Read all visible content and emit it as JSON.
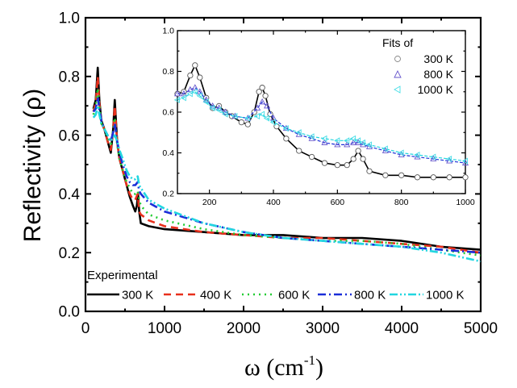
{
  "chart_data": [
    {
      "id": "main",
      "type": "line",
      "title": "",
      "xlabel": "ω (cm⁻¹)",
      "xlabel_base": "ω (cm",
      "xlabel_sup": "-1",
      "xlabel_close": ")",
      "ylabel": "Reflectivity (ρ)",
      "xlim": [
        0,
        5000
      ],
      "ylim": [
        0.0,
        1.0
      ],
      "xticks": [
        0,
        1000,
        2000,
        3000,
        4000,
        5000
      ],
      "xtick_labels": [
        "0",
        "1000",
        "2000",
        "3000",
        "4000",
        "5000"
      ],
      "yticks": [
        0.0,
        0.2,
        0.4,
        0.6,
        0.8,
        1.0
      ],
      "ytick_labels": [
        "0.0",
        "0.2",
        "0.4",
        "0.6",
        "0.8",
        "1.0"
      ],
      "grid": false,
      "legend_title": "Experimental",
      "legend_position": "bottom",
      "series": [
        {
          "name": "300 K",
          "color": "#000000",
          "style": "solid",
          "x": [
            100,
            130,
            155,
            175,
            200,
            240,
            280,
            320,
            350,
            370,
            400,
            430,
            470,
            520,
            560,
            600,
            630,
            650,
            665,
            680,
            700,
            800,
            1000,
            1500,
            2000,
            2500,
            3000,
            3500,
            4000,
            4500,
            5000
          ],
          "y": [
            0.69,
            0.72,
            0.83,
            0.72,
            0.65,
            0.62,
            0.58,
            0.54,
            0.62,
            0.72,
            0.58,
            0.52,
            0.48,
            0.43,
            0.39,
            0.36,
            0.34,
            0.36,
            0.4,
            0.34,
            0.3,
            0.29,
            0.28,
            0.27,
            0.26,
            0.26,
            0.25,
            0.25,
            0.24,
            0.22,
            0.21
          ]
        },
        {
          "name": "400 K",
          "color": "#e8301c",
          "style": "dash",
          "x": [
            100,
            130,
            155,
            175,
            200,
            240,
            280,
            320,
            350,
            370,
            400,
            430,
            470,
            520,
            560,
            600,
            630,
            660,
            680,
            700,
            800,
            1000,
            1500,
            2000,
            2500,
            3000,
            3500,
            4000,
            4500,
            5000
          ],
          "y": [
            0.68,
            0.71,
            0.8,
            0.71,
            0.64,
            0.62,
            0.58,
            0.55,
            0.62,
            0.7,
            0.58,
            0.52,
            0.48,
            0.43,
            0.4,
            0.38,
            0.38,
            0.4,
            0.34,
            0.33,
            0.31,
            0.29,
            0.27,
            0.26,
            0.25,
            0.25,
            0.24,
            0.23,
            0.22,
            0.2
          ]
        },
        {
          "name": "600 K",
          "color": "#22cc33",
          "style": "dot",
          "x": [
            100,
            130,
            155,
            175,
            200,
            240,
            280,
            320,
            350,
            370,
            400,
            430,
            470,
            520,
            560,
            600,
            630,
            660,
            680,
            700,
            800,
            1000,
            1500,
            2000,
            2500,
            3000,
            3500,
            4000,
            4500,
            5000
          ],
          "y": [
            0.67,
            0.7,
            0.76,
            0.7,
            0.64,
            0.62,
            0.59,
            0.57,
            0.62,
            0.66,
            0.57,
            0.52,
            0.48,
            0.44,
            0.42,
            0.4,
            0.4,
            0.41,
            0.38,
            0.36,
            0.33,
            0.31,
            0.28,
            0.26,
            0.25,
            0.24,
            0.24,
            0.23,
            0.21,
            0.19
          ]
        },
        {
          "name": "800 K",
          "color": "#1a2ed8",
          "style": "dashdot",
          "x": [
            100,
            130,
            155,
            175,
            200,
            240,
            280,
            320,
            350,
            370,
            400,
            430,
            470,
            520,
            560,
            600,
            630,
            660,
            680,
            700,
            800,
            1000,
            1500,
            2000,
            2500,
            3000,
            3500,
            4000,
            4500,
            5000
          ],
          "y": [
            0.68,
            0.69,
            0.73,
            0.69,
            0.65,
            0.62,
            0.6,
            0.58,
            0.61,
            0.64,
            0.58,
            0.54,
            0.5,
            0.46,
            0.44,
            0.43,
            0.43,
            0.44,
            0.41,
            0.4,
            0.37,
            0.34,
            0.3,
            0.27,
            0.25,
            0.24,
            0.23,
            0.22,
            0.21,
            0.2
          ]
        },
        {
          "name": "1000 K",
          "color": "#22d6e0",
          "style": "dashdotdot",
          "x": [
            100,
            130,
            155,
            175,
            200,
            240,
            280,
            320,
            350,
            370,
            400,
            430,
            470,
            520,
            560,
            600,
            630,
            660,
            680,
            700,
            800,
            1000,
            1500,
            2000,
            2500,
            3000,
            3500,
            4000,
            4500,
            5000
          ],
          "y": [
            0.66,
            0.67,
            0.7,
            0.67,
            0.64,
            0.62,
            0.6,
            0.58,
            0.59,
            0.6,
            0.58,
            0.55,
            0.52,
            0.48,
            0.46,
            0.45,
            0.45,
            0.46,
            0.43,
            0.42,
            0.38,
            0.35,
            0.3,
            0.27,
            0.25,
            0.24,
            0.23,
            0.22,
            0.2,
            0.17
          ]
        }
      ]
    },
    {
      "id": "inset",
      "type": "line",
      "title": "",
      "xlabel": "",
      "ylabel": "",
      "xlim": [
        100,
        1000
      ],
      "ylim": [
        0.2,
        1.0
      ],
      "xticks": [
        200,
        400,
        600,
        800,
        1000
      ],
      "xtick_labels": [
        "200",
        "400",
        "600",
        "800",
        "1000"
      ],
      "yticks": [
        0.2,
        0.4,
        0.6,
        0.8,
        1.0
      ],
      "ytick_labels": [
        "0.2",
        "0.4",
        "0.6",
        "0.8",
        "1.0"
      ],
      "grid": false,
      "legend_title": "Fits of",
      "legend_position": "top-right",
      "series": [
        {
          "name": "300 K",
          "color": "#000000",
          "marker": "circle",
          "marker_color": "#555555",
          "x": [
            100,
            120,
            140,
            155,
            170,
            190,
            210,
            230,
            250,
            270,
            300,
            320,
            340,
            355,
            365,
            375,
            390,
            410,
            440,
            480,
            520,
            560,
            600,
            630,
            650,
            665,
            680,
            700,
            750,
            800,
            850,
            900,
            950,
            1000
          ],
          "y": [
            0.69,
            0.7,
            0.78,
            0.83,
            0.77,
            0.67,
            0.62,
            0.63,
            0.6,
            0.58,
            0.55,
            0.54,
            0.6,
            0.7,
            0.72,
            0.68,
            0.59,
            0.53,
            0.47,
            0.41,
            0.38,
            0.35,
            0.34,
            0.34,
            0.37,
            0.41,
            0.37,
            0.31,
            0.29,
            0.29,
            0.28,
            0.28,
            0.28,
            0.28
          ]
        },
        {
          "name": "800 K",
          "color": "#1a2ed8",
          "marker": "triangle",
          "marker_color": "#6655cc",
          "x": [
            100,
            120,
            140,
            155,
            170,
            190,
            210,
            230,
            250,
            280,
            320,
            350,
            365,
            380,
            400,
            440,
            480,
            520,
            560,
            600,
            630,
            650,
            665,
            680,
            700,
            750,
            800,
            850,
            900,
            950,
            1000
          ],
          "y": [
            0.69,
            0.69,
            0.71,
            0.72,
            0.7,
            0.66,
            0.63,
            0.62,
            0.6,
            0.58,
            0.57,
            0.62,
            0.65,
            0.63,
            0.57,
            0.52,
            0.49,
            0.47,
            0.45,
            0.44,
            0.44,
            0.45,
            0.45,
            0.44,
            0.43,
            0.41,
            0.39,
            0.38,
            0.37,
            0.36,
            0.35
          ]
        },
        {
          "name": "1000 K",
          "color": "#22d6e0",
          "marker": "triangle-left",
          "marker_color": "#44dde6",
          "x": [
            100,
            120,
            140,
            155,
            170,
            190,
            210,
            230,
            250,
            280,
            320,
            350,
            365,
            380,
            400,
            440,
            480,
            520,
            560,
            600,
            630,
            650,
            665,
            680,
            700,
            750,
            800,
            850,
            900,
            950,
            1000
          ],
          "y": [
            0.66,
            0.67,
            0.69,
            0.7,
            0.68,
            0.65,
            0.62,
            0.61,
            0.59,
            0.58,
            0.57,
            0.58,
            0.59,
            0.57,
            0.55,
            0.52,
            0.5,
            0.48,
            0.47,
            0.46,
            0.46,
            0.47,
            0.46,
            0.45,
            0.44,
            0.42,
            0.4,
            0.39,
            0.38,
            0.37,
            0.36
          ]
        }
      ]
    }
  ]
}
